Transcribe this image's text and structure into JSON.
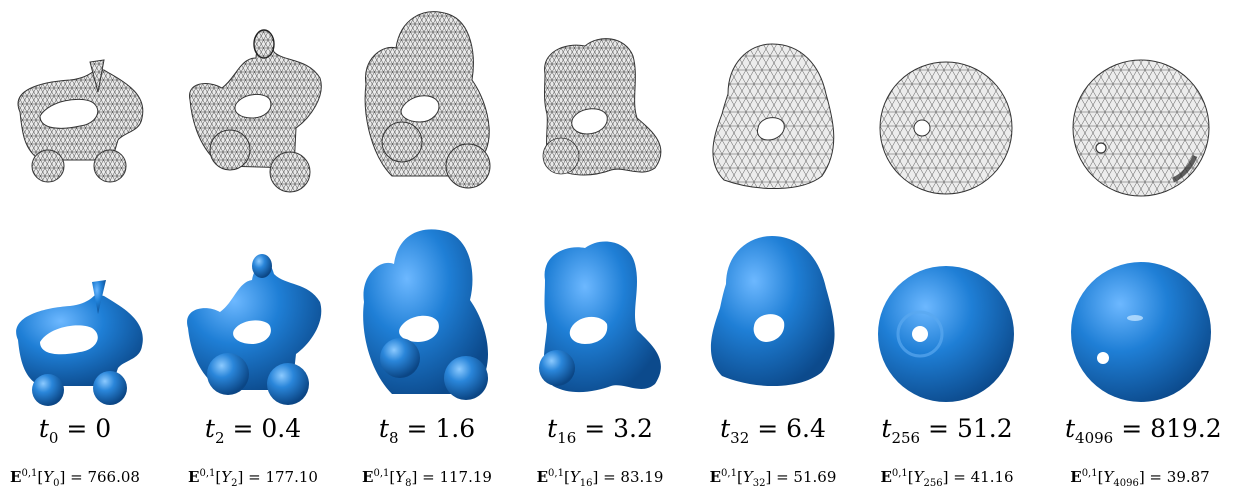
{
  "columns": [
    {
      "t_sub": "0",
      "t_val": "0",
      "y_sub": "0",
      "energy": "766.08"
    },
    {
      "t_sub": "2",
      "t_val": "0.4",
      "y_sub": "2",
      "energy": "177.10"
    },
    {
      "t_sub": "8",
      "t_val": "1.6",
      "y_sub": "8",
      "energy": "117.19"
    },
    {
      "t_sub": "16",
      "t_val": "3.2",
      "y_sub": "16",
      "energy": "83.19"
    },
    {
      "t_sub": "32",
      "t_val": "6.4",
      "y_sub": "32",
      "energy": "51.69"
    },
    {
      "t_sub": "256",
      "t_val": "51.2",
      "y_sub": "256",
      "energy": "41.16"
    },
    {
      "t_sub": "4096",
      "t_val": "819.2",
      "y_sub": "4096",
      "energy": "39.87"
    }
  ],
  "energy_symbol": "E",
  "energy_sup": "0,1",
  "y_symbol": "Y",
  "t_symbol": "t",
  "colors": {
    "mesh_fill": "#e8e8e8",
    "mesh_line": "#3a3a3a",
    "blue": "#1f7fd6",
    "blue_dark": "#0d4f96",
    "blue_light": "#7fc1ff"
  }
}
